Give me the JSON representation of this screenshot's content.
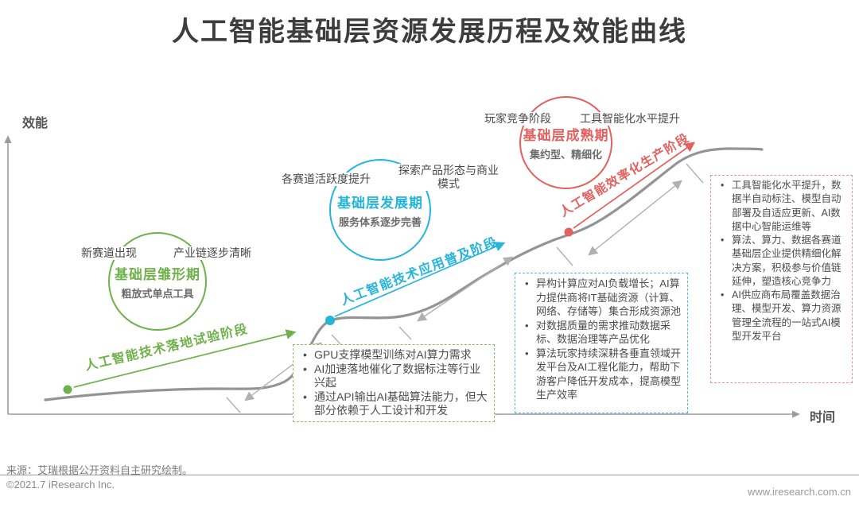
{
  "title": "人工智能基础层资源发展历程及效能曲线",
  "colors": {
    "green": "#6fb14a",
    "blue": "#25b4da",
    "red": "#e2605d",
    "curve": "#949494",
    "gray-arrow": "#b0b0b0",
    "axis": "#9b9b9b"
  },
  "axes": {
    "y": "效能",
    "x": "时间"
  },
  "stages": [
    {
      "circle_title": "基础层雏形期",
      "circle_subtitle": "粗放式单点工具",
      "side_label_left": "新赛道出现",
      "side_label_right": "产业链逐步清晰",
      "phase_label": "人工智能技术落地试验阶段",
      "bullets": [
        "GPU支撑模型训练对AI算力需求",
        "AI加速落地催化了数据标注等行业兴起",
        "通过API输出AI基础算法能力，但大部分依赖于人工设计和开发"
      ]
    },
    {
      "circle_title": "基础层发展期",
      "circle_subtitle": "服务体系逐步完善",
      "side_label_left": "各赛道活跃度提升",
      "side_label_right": "探索产品形态与商业模式",
      "phase_label": "人工智能技术应用普及阶段",
      "bullets": [
        "异构计算应对AI负载增长；AI算力提供商将IT基础资源（计算、网络、存储等）集合形成资源池",
        "对数据质量的需求推动数据采标、数据治理等产品优化",
        "算法玩家持续深耕各垂直领域开发平台及AI工程化能力，帮助下游客户降低开发成本，提高模型生产效率"
      ]
    },
    {
      "circle_title": "基础层成熟期",
      "circle_subtitle": "集约型、精细化",
      "side_label_left": "玩家竞争阶段",
      "side_label_right": "工具智能化水平提升",
      "phase_label": "人工智能效率化生产阶段",
      "bullets": [
        "工具智能化水平提升，数据半自动标注、模型自动部署及自适应更新、AI数据中心智能运维等",
        "算法、算力、数据各赛道基础层企业提供精细化解决方案，积极参与价值链延伸，塑造核心竞争力",
        "AI供应商布局覆盖数据治理、模型开发、算力资源管理全流程的一站式AI模型开发平台"
      ]
    }
  ],
  "footer": {
    "source": "来源：艾瑞根据公开资料自主研究绘制。",
    "copyright": "©2021.7 iResearch Inc.",
    "website": "www.iresearch.com.cn"
  }
}
